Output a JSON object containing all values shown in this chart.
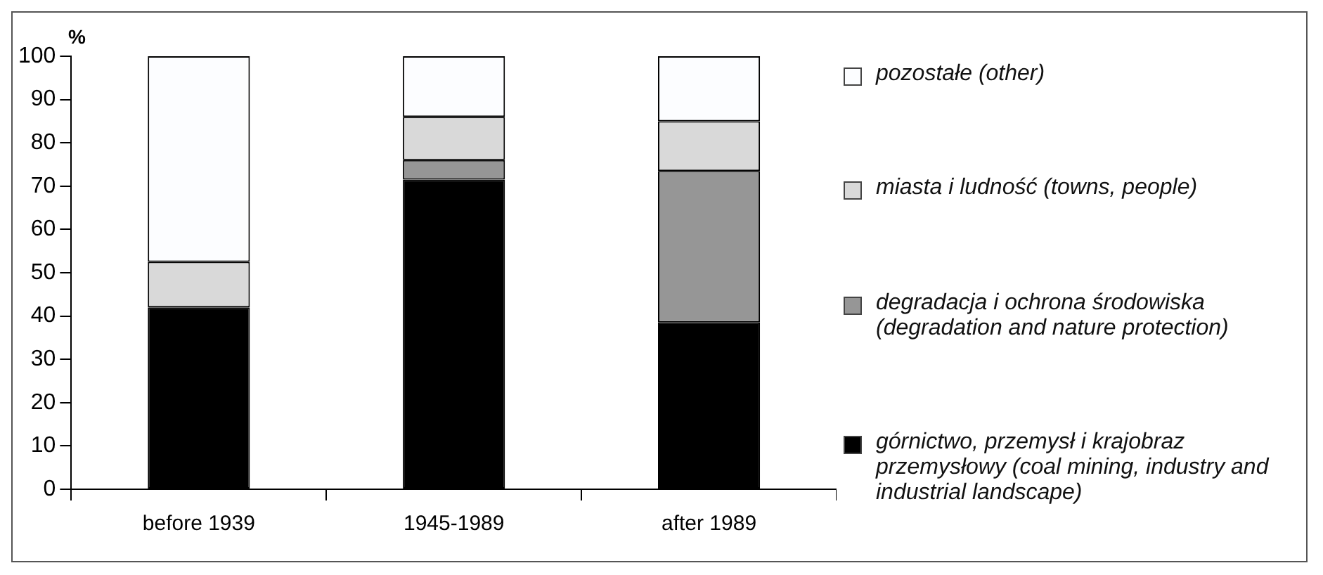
{
  "chart_data": {
    "type": "bar",
    "stacked": true,
    "ylabel": "%",
    "categories": [
      "before 1939",
      "1945-1989",
      "after 1989"
    ],
    "series": [
      {
        "name": "górnictwo, przemysł i krajobraz przemysłowy (coal mining, industry and industrial landscape)",
        "color": "#000000",
        "values": [
          42,
          71.5,
          38.5
        ]
      },
      {
        "name": "degradacja i ochrona środowiska (degradation and nature protection)",
        "color": "#969696",
        "values": [
          0,
          4.5,
          35
        ]
      },
      {
        "name": "miasta i ludność (towns, people)",
        "color": "#d9d9d9",
        "values": [
          10.5,
          10,
          11.5
        ]
      },
      {
        "name": "pozostałe (other)",
        "color": "#fcfdff",
        "values": [
          47.5,
          14,
          15
        ]
      }
    ],
    "ylim": [
      0,
      100
    ],
    "yticks": [
      0,
      10,
      20,
      30,
      40,
      50,
      60,
      70,
      80,
      90,
      100
    ],
    "grid": false,
    "legend": "right"
  }
}
